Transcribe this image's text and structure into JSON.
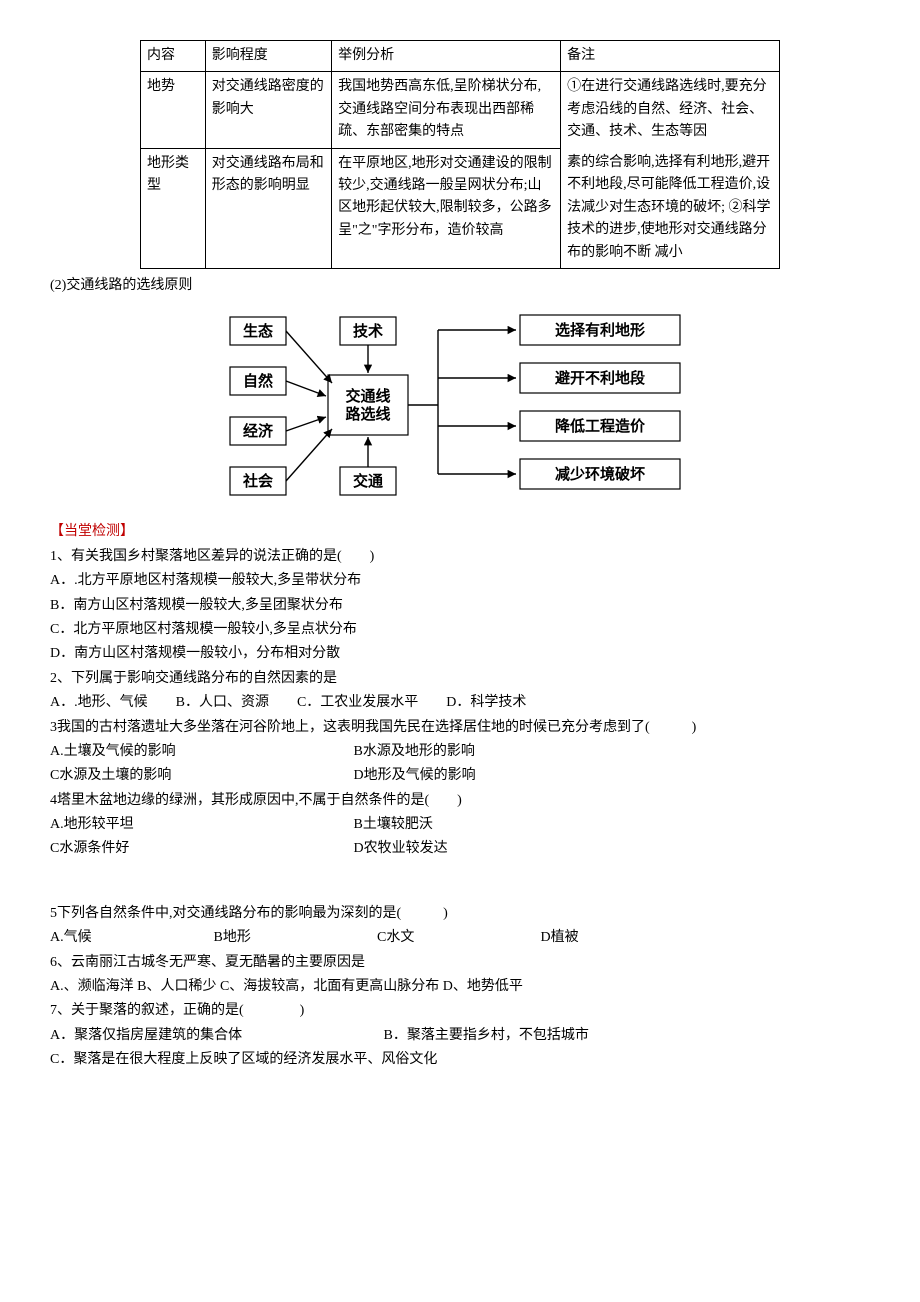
{
  "table": {
    "header": [
      "内容",
      "影响程度",
      "举例分析",
      "备注"
    ],
    "row1": {
      "c1": "地势",
      "c2": "对交通线路密度的影响大",
      "c3": "我国地势西高东低,呈阶梯状分布,交通线路空间分布表现出西部稀疏、东部密集的特点",
      "c4top": "①在进行交通线路选线时,要充分考虑沿线的自然、经济、社会、交通、技术、生态等因"
    },
    "row2": {
      "c1": "地形类型",
      "c2": "对交通线路布局和形态的影响明显",
      "c3": "在平原地区,地形对交通建设的限制较少,交通线路一般呈网状分布;山区地形起伏较大,限制较多，公路多呈\"之\"字形分布，造价较高",
      "c4bot": "素的综合影响,选择有利地形,避开不利地段,尽可能降低工程造价,设法减少对生态环境的破坏; ②科学技术的进步,使地形对交通线路分布的影响不断 减小"
    }
  },
  "subheading": "(2)交通线路的选线原则",
  "diagram": {
    "left": [
      "生态",
      "自然",
      "经济",
      "社会"
    ],
    "top": "技术",
    "bottom": "交通",
    "center": "交通线路选线",
    "right": [
      "选择有利地形",
      "避开不利地段",
      "降低工程造价",
      "减少环境破坏"
    ],
    "box_stroke": "#000000",
    "arrow_stroke": "#000000",
    "bg": "#ffffff",
    "font_size": 15,
    "font_weight": "bold"
  },
  "test_header": "【当堂检测】",
  "q1": {
    "stem": " 1、有关我国乡村聚落地区差异的说法正确的是(　　)",
    "a": "A．.北方平原地区村落规模一般较大,多呈带状分布",
    "b": "B．南方山区村落规模一般较大,多呈团聚状分布",
    "c": "C．北方平原地区村落规模一般较小,多呈点状分布",
    "d": "D．南方山区村落规模一般较小，分布相对分散"
  },
  "q2": {
    "stem": "2、下列属于影响交通线路分布的自然因素的是",
    "opts": " A．.地形、气候　　B．人口、资源　　C．工农业发展水平　　D．科学技术"
  },
  "q3": {
    "stem": "3我国的古村落遗址大多坐落在河谷阶地上，这表明我国先民在选择居住地的时候已充分考虑到了(　　　)",
    "a": "A.土壤及气候的影响",
    "b": "B水源及地形的影响",
    "c": "C水源及土壤的影响",
    "d": "D地形及气候的影响"
  },
  "q4": {
    "stem": "4塔里木盆地边缘的绿洲，其形成原因中,不属于自然条件的是(　　)",
    "a": "A.地形较平坦",
    "b": "B土壤较肥沃",
    "c": "C水源条件好",
    "d": "D农牧业较发达"
  },
  "q5": {
    "stem": "5下列各自然条件中,对交通线路分布的影响最为深刻的是(　　　)",
    "a": "A.气候",
    "b": "B地形",
    "c": "C水文",
    "d": "D植被"
  },
  "q6": {
    "stem": "6、云南丽江古城冬无严寒、夏无酷暑的主要原因是",
    "opts": "A.、濒临海洋 B、人口稀少 C、海拔较高，北面有更高山脉分布 D、地势低平"
  },
  "q7": {
    "stem": "7、关于聚落的叙述，正确的是(　　　　)",
    "a": "A．聚落仅指房屋建筑的集合体",
    "b": "B．聚落主要指乡村，不包括城市",
    "c": "C．聚落是在很大程度上反映了区域的经济发展水平、风俗文化"
  }
}
